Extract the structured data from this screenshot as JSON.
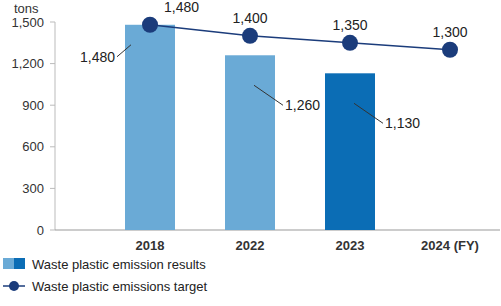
{
  "chart_data": {
    "type": "bar",
    "ylabel": "tons",
    "categories": [
      "2018",
      "2022",
      "2023",
      "2024 (FY)"
    ],
    "series": [
      {
        "name": "Waste plastic emission results",
        "type": "bar",
        "colors": [
          "#6aaad6",
          "#6aaad6",
          "#0b6db5",
          null
        ],
        "values": [
          1480,
          1260,
          1130,
          null
        ],
        "value_labels": [
          "1,480",
          "1,260",
          "1,130",
          null
        ]
      },
      {
        "name": "Waste plastic emissions target",
        "type": "line",
        "color": "#1b3c7b",
        "marker": "circle",
        "values": [
          1480,
          1400,
          1350,
          1300
        ],
        "value_labels": [
          "1,480",
          "1,400",
          "1,350",
          "1,300"
        ]
      }
    ],
    "ylim": [
      0,
      1500
    ],
    "yticks": [
      0,
      300,
      600,
      900,
      {
        "value": 1200,
        "label": "1,200"
      },
      {
        "value": 1500,
        "label": "1,500"
      }
    ],
    "grid": false,
    "data_labels": true,
    "legend": "bottom-left"
  }
}
